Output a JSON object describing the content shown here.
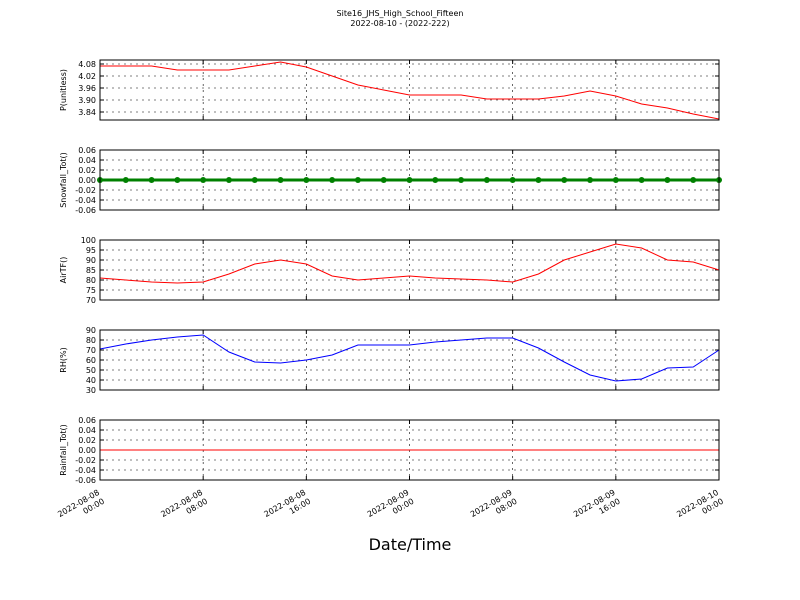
{
  "chart_data": [
    {
      "type": "line",
      "title": "Site16_JHS_High_School_Fifteen",
      "subtitle": "2022-08-10 - (2022-222)",
      "ylabel": "P(unitless)",
      "color": "#ff0000",
      "markers": false,
      "x": [
        "2022-08-08 00:00",
        "2022-08-08 02:00",
        "2022-08-08 04:00",
        "2022-08-08 06:00",
        "2022-08-08 08:00",
        "2022-08-08 10:00",
        "2022-08-08 12:00",
        "2022-08-08 14:00",
        "2022-08-08 16:00",
        "2022-08-08 18:00",
        "2022-08-08 20:00",
        "2022-08-08 22:00",
        "2022-08-09 00:00",
        "2022-08-09 02:00",
        "2022-08-09 04:00",
        "2022-08-09 06:00",
        "2022-08-09 08:00",
        "2022-08-09 10:00",
        "2022-08-09 12:00",
        "2022-08-09 14:00",
        "2022-08-09 16:00",
        "2022-08-09 18:00",
        "2022-08-09 20:00",
        "2022-08-09 22:00",
        "2022-08-10 00:00"
      ],
      "values": [
        4.07,
        4.07,
        4.07,
        4.05,
        4.05,
        4.05,
        4.07,
        4.09,
        4.065,
        4.02,
        3.975,
        3.95,
        3.925,
        3.925,
        3.925,
        3.905,
        3.905,
        3.905,
        3.92,
        3.945,
        3.92,
        3.88,
        3.86,
        3.83,
        3.805
      ],
      "ylim": [
        3.8,
        4.1
      ],
      "yticks": [
        3.84,
        {
          "value": 3.9,
          "label": "3.90"
        },
        3.96,
        4.02,
        4.08
      ],
      "grid": true
    },
    {
      "type": "line",
      "ylabel": "Snowfall_Tot()",
      "color": "#008000",
      "markers": true,
      "x": [
        "2022-08-08 00:00",
        "2022-08-08 02:00",
        "2022-08-08 04:00",
        "2022-08-08 06:00",
        "2022-08-08 08:00",
        "2022-08-08 10:00",
        "2022-08-08 12:00",
        "2022-08-08 14:00",
        "2022-08-08 16:00",
        "2022-08-08 18:00",
        "2022-08-08 20:00",
        "2022-08-08 22:00",
        "2022-08-09 00:00",
        "2022-08-09 02:00",
        "2022-08-09 04:00",
        "2022-08-09 06:00",
        "2022-08-09 08:00",
        "2022-08-09 10:00",
        "2022-08-09 12:00",
        "2022-08-09 14:00",
        "2022-08-09 16:00",
        "2022-08-09 18:00",
        "2022-08-09 20:00",
        "2022-08-09 22:00",
        "2022-08-10 00:00"
      ],
      "values": [
        0,
        0,
        0,
        0,
        0,
        0,
        0,
        0,
        0,
        0,
        0,
        0,
        0,
        0,
        0,
        0,
        0,
        0,
        0,
        0,
        0,
        0,
        0,
        0,
        0
      ],
      "ylim": [
        -0.06,
        0.06
      ],
      "yticks": [
        -0.06,
        -0.04,
        -0.02,
        {
          "value": 0,
          "label": "0.00"
        },
        0.02,
        0.04,
        0.06
      ],
      "grid": true
    },
    {
      "type": "line",
      "ylabel": "AirTF()",
      "color": "#ff0000",
      "markers": false,
      "x": [
        "2022-08-08 00:00",
        "2022-08-08 02:00",
        "2022-08-08 04:00",
        "2022-08-08 06:00",
        "2022-08-08 08:00",
        "2022-08-08 10:00",
        "2022-08-08 12:00",
        "2022-08-08 14:00",
        "2022-08-08 16:00",
        "2022-08-08 18:00",
        "2022-08-08 20:00",
        "2022-08-08 22:00",
        "2022-08-09 00:00",
        "2022-08-09 02:00",
        "2022-08-09 04:00",
        "2022-08-09 06:00",
        "2022-08-09 08:00",
        "2022-08-09 10:00",
        "2022-08-09 12:00",
        "2022-08-09 14:00",
        "2022-08-09 16:00",
        "2022-08-09 18:00",
        "2022-08-09 20:00",
        "2022-08-09 22:00",
        "2022-08-10 00:00"
      ],
      "values": [
        81,
        80,
        79,
        78.5,
        79,
        83,
        88,
        90,
        88,
        82,
        80,
        81,
        82,
        81,
        80.5,
        80,
        79,
        83,
        90,
        94,
        98,
        96,
        90,
        89,
        85
      ],
      "ylim": [
        70,
        100
      ],
      "yticks": [
        70,
        75,
        80,
        85,
        90,
        95,
        100
      ],
      "grid": true
    },
    {
      "type": "line",
      "ylabel": "RH(%)",
      "color": "#0000ff",
      "markers": false,
      "x": [
        "2022-08-08 00:00",
        "2022-08-08 02:00",
        "2022-08-08 04:00",
        "2022-08-08 06:00",
        "2022-08-08 08:00",
        "2022-08-08 10:00",
        "2022-08-08 12:00",
        "2022-08-08 14:00",
        "2022-08-08 16:00",
        "2022-08-08 18:00",
        "2022-08-08 20:00",
        "2022-08-08 22:00",
        "2022-08-09 00:00",
        "2022-08-09 02:00",
        "2022-08-09 04:00",
        "2022-08-09 06:00",
        "2022-08-09 08:00",
        "2022-08-09 10:00",
        "2022-08-09 12:00",
        "2022-08-09 14:00",
        "2022-08-09 16:00",
        "2022-08-09 18:00",
        "2022-08-09 20:00",
        "2022-08-09 22:00",
        "2022-08-10 00:00"
      ],
      "values": [
        71,
        76,
        80,
        83,
        85,
        68,
        58,
        57,
        60,
        65,
        75,
        75,
        75,
        78,
        80,
        82,
        82,
        72,
        58,
        45,
        39,
        41,
        52,
        53,
        70
      ],
      "ylim": [
        30,
        90
      ],
      "yticks": [
        30,
        40,
        50,
        60,
        70,
        80,
        90
      ],
      "grid": true
    },
    {
      "type": "line",
      "ylabel": "Rainfall_Tot()",
      "xlabel": "Date/Time",
      "color": "#ff0000",
      "markers": false,
      "x": [
        "2022-08-08 00:00",
        "2022-08-08 02:00",
        "2022-08-08 04:00",
        "2022-08-08 06:00",
        "2022-08-08 08:00",
        "2022-08-08 10:00",
        "2022-08-08 12:00",
        "2022-08-08 14:00",
        "2022-08-08 16:00",
        "2022-08-08 18:00",
        "2022-08-08 20:00",
        "2022-08-08 22:00",
        "2022-08-09 00:00",
        "2022-08-09 02:00",
        "2022-08-09 04:00",
        "2022-08-09 06:00",
        "2022-08-09 08:00",
        "2022-08-09 10:00",
        "2022-08-09 12:00",
        "2022-08-09 14:00",
        "2022-08-09 16:00",
        "2022-08-09 18:00",
        "2022-08-09 20:00",
        "2022-08-09 22:00",
        "2022-08-10 00:00"
      ],
      "values": [
        0,
        0,
        0,
        0,
        0,
        0,
        0,
        0,
        0,
        0,
        0,
        0,
        0,
        0,
        0,
        0,
        0,
        0,
        0,
        0,
        0,
        0,
        0,
        0,
        0
      ],
      "ylim": [
        -0.06,
        0.06
      ],
      "yticks": [
        -0.06,
        -0.04,
        -0.02,
        {
          "value": 0,
          "label": "0.00"
        },
        0.02,
        0.04,
        0.06
      ],
      "grid": true,
      "xlim": [
        "2022-08-08 00:00",
        "2022-08-10 00:00"
      ],
      "xticks": [
        "2022-08-08 00:00",
        "2022-08-08 08:00",
        "2022-08-08 16:00",
        "2022-08-09 00:00",
        "2022-08-09 08:00",
        "2022-08-09 16:00",
        "2022-08-10 00:00"
      ]
    }
  ]
}
